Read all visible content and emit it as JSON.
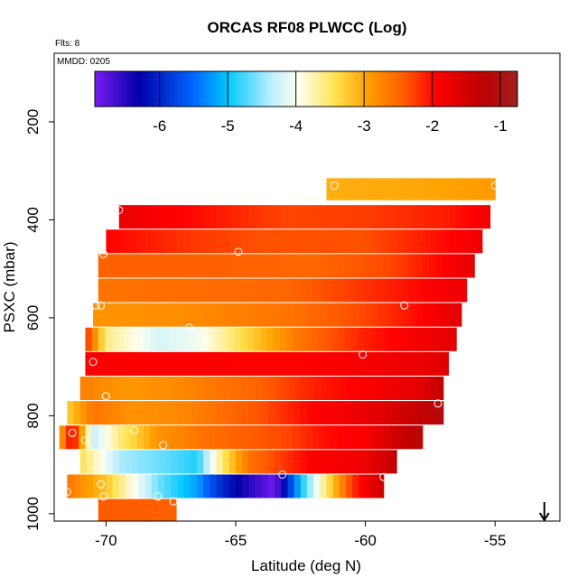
{
  "chart_data": {
    "type": "heatmap",
    "title": "ORCAS RF08 PLWCC (Log)",
    "annotations": {
      "flights": "Flts: 8",
      "date": "MMDD: 0205"
    },
    "xlabel": "Latitude (deg N)",
    "ylabel": "PSXC (mbar)",
    "xlim": [
      -72,
      -52.5
    ],
    "ylim": [
      1015,
      60
    ],
    "y_reversed": true,
    "x_ticks": [
      -70,
      -65,
      -60,
      -55
    ],
    "x_tick_labels": [
      "-70",
      "-65",
      "-60",
      "-55"
    ],
    "y_ticks": [
      200,
      400,
      600,
      800,
      1000
    ],
    "y_tick_labels": [
      "200",
      "400",
      "600",
      "800",
      "1000"
    ],
    "colorbar": {
      "range": [
        -6.95,
        -0.75
      ],
      "ticks": [
        -6,
        -5,
        -4,
        -3,
        -2,
        -1
      ],
      "tick_labels": [
        "-6",
        "-5",
        "-4",
        "-3",
        "-2",
        "-1"
      ],
      "colors": [
        "#7a1cf2",
        "#0000aa",
        "#0066ff",
        "#00c8ff",
        "#bfefff",
        "#ffffee",
        "#ffe04a",
        "#ffa000",
        "#ff5a00",
        "#ff0000",
        "#c00000",
        "#a02020"
      ],
      "color_values": [
        -6.95,
        -6.3,
        -5.5,
        -5.0,
        -4.35,
        -3.95,
        -3.4,
        -2.95,
        -2.4,
        -1.95,
        -1.3,
        -0.75
      ]
    },
    "direction_marker": {
      "latitude": -53.1,
      "symbol": "down-arrow"
    },
    "bands": [
      {
        "p_top": 315,
        "p_bot": 360,
        "x_start": -61.5,
        "x_end": -55.0,
        "stops": [
          [
            -61.5,
            -3.05
          ],
          [
            -58.0,
            -3.0
          ],
          [
            -55.0,
            -2.9
          ]
        ]
      },
      {
        "p_top": 370,
        "p_bot": 418,
        "x_start": -69.5,
        "x_end": -55.2,
        "stops": [
          [
            -69.5,
            -1.75
          ],
          [
            -66.0,
            -2.05
          ],
          [
            -63.0,
            -2.3
          ],
          [
            -60.0,
            -2.25
          ],
          [
            -57.0,
            -2.1
          ],
          [
            -55.2,
            -1.85
          ]
        ]
      },
      {
        "p_top": 420,
        "p_bot": 468,
        "x_start": -70.0,
        "x_end": -55.5,
        "stops": [
          [
            -70.0,
            -1.95
          ],
          [
            -67.0,
            -2.2
          ],
          [
            -64.0,
            -2.35
          ],
          [
            -60.0,
            -2.35
          ],
          [
            -57.0,
            -2.0
          ],
          [
            -55.5,
            -1.8
          ]
        ]
      },
      {
        "p_top": 470,
        "p_bot": 518,
        "x_start": -70.3,
        "x_end": -55.8,
        "stops": [
          [
            -70.3,
            -2.45
          ],
          [
            -66.0,
            -2.45
          ],
          [
            -62.0,
            -2.5
          ],
          [
            -59.0,
            -2.3
          ],
          [
            -57.0,
            -1.95
          ],
          [
            -55.8,
            -1.7
          ]
        ]
      },
      {
        "p_top": 520,
        "p_bot": 568,
        "x_start": -70.3,
        "x_end": -56.1,
        "stops": [
          [
            -70.3,
            -2.6
          ],
          [
            -67.0,
            -2.55
          ],
          [
            -63.0,
            -2.5
          ],
          [
            -60.0,
            -2.2
          ],
          [
            -58.0,
            -2.0
          ],
          [
            -56.1,
            -1.75
          ]
        ]
      },
      {
        "p_top": 570,
        "p_bot": 618,
        "x_start": -70.5,
        "x_end": -56.3,
        "stops": [
          [
            -70.5,
            -2.85
          ],
          [
            -67.0,
            -2.8
          ],
          [
            -63.0,
            -2.6
          ],
          [
            -60.0,
            -2.3
          ],
          [
            -58.0,
            -2.0
          ],
          [
            -56.3,
            -1.65
          ]
        ]
      },
      {
        "p_top": 620,
        "p_bot": 668,
        "x_start": -70.8,
        "x_end": -56.5,
        "stops": [
          [
            -70.8,
            -2.1
          ],
          [
            -70.0,
            -3.6
          ],
          [
            -68.0,
            -4.2
          ],
          [
            -66.5,
            -4.05
          ],
          [
            -64.5,
            -3.3
          ],
          [
            -62.5,
            -2.6
          ],
          [
            -60.0,
            -2.1
          ],
          [
            -58.0,
            -1.85
          ],
          [
            -56.5,
            -1.65
          ]
        ]
      },
      {
        "p_top": 670,
        "p_bot": 718,
        "x_start": -70.8,
        "x_end": -56.8,
        "stops": [
          [
            -70.8,
            -1.9
          ],
          [
            -67.0,
            -1.9
          ],
          [
            -63.0,
            -1.95
          ],
          [
            -60.0,
            -1.85
          ],
          [
            -58.0,
            -1.75
          ],
          [
            -56.8,
            -1.6
          ]
        ]
      },
      {
        "p_top": 720,
        "p_bot": 768,
        "x_start": -71.0,
        "x_end": -57.0,
        "stops": [
          [
            -71.0,
            -2.7
          ],
          [
            -69.0,
            -2.9
          ],
          [
            -67.0,
            -2.75
          ],
          [
            -64.0,
            -2.45
          ],
          [
            -62.0,
            -2.1
          ],
          [
            -60.0,
            -1.9
          ],
          [
            -58.0,
            -1.7
          ],
          [
            -57.0,
            -1.3
          ]
        ]
      },
      {
        "p_top": 770,
        "p_bot": 818,
        "x_start": -71.5,
        "x_end": -57.0,
        "stops": [
          [
            -71.5,
            -3.3
          ],
          [
            -70.5,
            -2.6
          ],
          [
            -69.0,
            -2.85
          ],
          [
            -67.0,
            -2.75
          ],
          [
            -64.0,
            -2.35
          ],
          [
            -62.0,
            -1.95
          ],
          [
            -60.0,
            -1.75
          ],
          [
            -58.0,
            -1.35
          ],
          [
            -57.0,
            -1.1
          ]
        ]
      },
      {
        "p_top": 820,
        "p_bot": 868,
        "x_start": -71.8,
        "x_end": -57.8,
        "stops": [
          [
            -71.8,
            -3.1
          ],
          [
            -71.3,
            -1.8
          ],
          [
            -70.5,
            -4.3
          ],
          [
            -69.5,
            -3.6
          ],
          [
            -68.0,
            -2.85
          ],
          [
            -66.0,
            -2.55
          ],
          [
            -63.0,
            -2.3
          ],
          [
            -61.5,
            -2.0
          ],
          [
            -60.0,
            -1.9
          ],
          [
            -58.5,
            -1.35
          ],
          [
            -57.8,
            -1.15
          ]
        ]
      },
      {
        "p_top": 870,
        "p_bot": 918,
        "x_start": -71.0,
        "x_end": -58.8,
        "stops": [
          [
            -71.0,
            -3.4
          ],
          [
            -69.5,
            -4.4
          ],
          [
            -67.5,
            -4.7
          ],
          [
            -66.5,
            -4.9
          ],
          [
            -65.5,
            -3.5
          ],
          [
            -64.5,
            -2.6
          ],
          [
            -62.0,
            -1.9
          ],
          [
            -60.0,
            -1.8
          ],
          [
            -58.8,
            -1.3
          ]
        ]
      },
      {
        "p_top": 920,
        "p_bot": 968,
        "x_start": -71.5,
        "x_end": -59.3,
        "stops": [
          [
            -71.5,
            -2.6
          ],
          [
            -70.0,
            -3.2
          ],
          [
            -68.0,
            -4.6
          ],
          [
            -66.5,
            -5.2
          ],
          [
            -65.5,
            -6.0
          ],
          [
            -64.5,
            -6.5
          ],
          [
            -63.5,
            -6.9
          ],
          [
            -62.5,
            -5.0
          ],
          [
            -61.5,
            -3.5
          ],
          [
            -60.5,
            -2.2
          ],
          [
            -59.3,
            -1.4
          ]
        ]
      },
      {
        "p_top": 970,
        "p_bot": 1015,
        "x_start": -70.3,
        "x_end": -67.3,
        "stops": [
          [
            -70.3,
            -2.4
          ],
          [
            -67.3,
            -2.45
          ]
        ]
      }
    ],
    "markers": [
      {
        "lat": -69.5,
        "p": 380
      },
      {
        "lat": -61.2,
        "p": 330
      },
      {
        "lat": -55.0,
        "p": 330
      },
      {
        "lat": -70.1,
        "p": 470
      },
      {
        "lat": -64.9,
        "p": 465
      },
      {
        "lat": -70.4,
        "p": 575
      },
      {
        "lat": -70.2,
        "p": 575
      },
      {
        "lat": -58.5,
        "p": 575
      },
      {
        "lat": -66.8,
        "p": 620
      },
      {
        "lat": -70.5,
        "p": 690
      },
      {
        "lat": -60.1,
        "p": 675
      },
      {
        "lat": -70.0,
        "p": 760
      },
      {
        "lat": -57.2,
        "p": 775
      },
      {
        "lat": -71.3,
        "p": 835
      },
      {
        "lat": -70.8,
        "p": 850
      },
      {
        "lat": -68.9,
        "p": 830
      },
      {
        "lat": -67.8,
        "p": 860
      },
      {
        "lat": -70.2,
        "p": 940
      },
      {
        "lat": -63.2,
        "p": 920
      },
      {
        "lat": -59.3,
        "p": 925
      },
      {
        "lat": -71.5,
        "p": 955
      },
      {
        "lat": -70.1,
        "p": 965
      },
      {
        "lat": -68.0,
        "p": 965
      },
      {
        "lat": -67.4,
        "p": 975
      }
    ]
  }
}
